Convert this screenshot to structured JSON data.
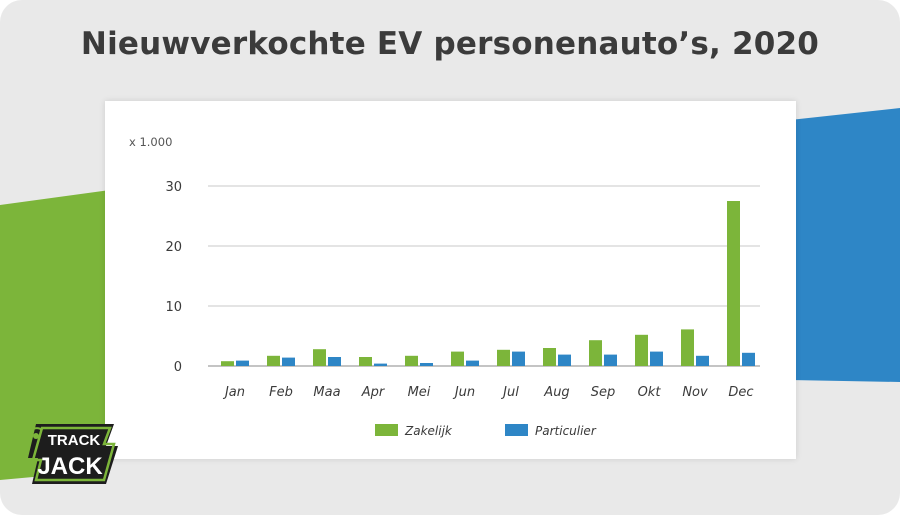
{
  "page": {
    "title": "Nieuwverkochte EV personenauto’s, 2020"
  },
  "colors": {
    "background": "#e9e9e9",
    "green": "#7cb53a",
    "blue": "#2e86c6",
    "text": "#3b3b3b"
  },
  "logo": {
    "text_top": "TRACK",
    "text_bottom": "JACK"
  },
  "chart_data": {
    "type": "bar",
    "unit_label": "x 1.000",
    "categories": [
      "Jan",
      "Feb",
      "Maa",
      "Apr",
      "Mei",
      "Jun",
      "Jul",
      "Aug",
      "Sep",
      "Okt",
      "Nov",
      "Dec"
    ],
    "series": [
      {
        "name": "Zakelijk",
        "color": "#7cb53a",
        "values": [
          0.8,
          1.7,
          2.8,
          1.5,
          1.7,
          2.4,
          2.7,
          3.0,
          4.3,
          5.2,
          6.1,
          27.5
        ]
      },
      {
        "name": "Particulier",
        "color": "#2e86c6",
        "values": [
          0.9,
          1.4,
          1.5,
          0.4,
          0.5,
          0.9,
          2.4,
          1.9,
          1.9,
          2.4,
          1.7,
          2.2
        ]
      }
    ],
    "y_ticks": [
      "0",
      "10",
      "20",
      "30"
    ],
    "ylim": [
      0,
      30
    ],
    "grid": true,
    "legend_position": "bottom"
  }
}
